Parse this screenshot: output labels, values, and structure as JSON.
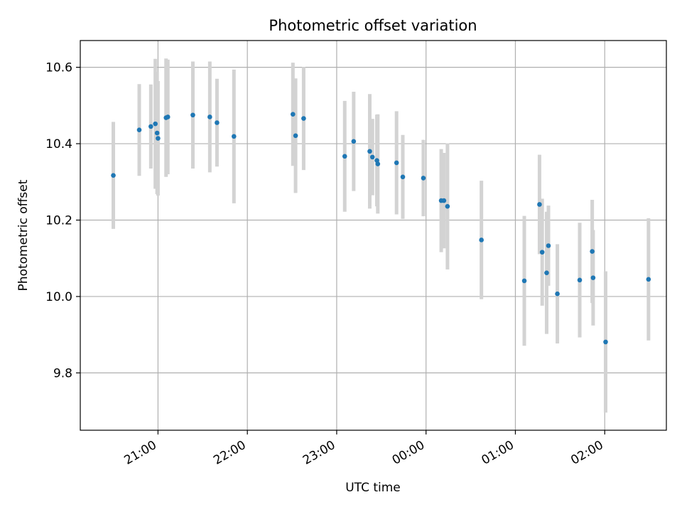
{
  "chart_data": {
    "type": "scatter",
    "title": "Photometric offset variation",
    "xlabel": "UTC time",
    "ylabel": "Photometric offset",
    "x_unit": "hours (continuous from 00:00 of the first night; values >= 24 fall after midnight)",
    "xlim": [
      20.13,
      26.69
    ],
    "ylim": [
      9.65,
      10.67
    ],
    "x_ticks": [
      {
        "value": 21,
        "label": "21:00"
      },
      {
        "value": 22,
        "label": "22:00"
      },
      {
        "value": 23,
        "label": "23:00"
      },
      {
        "value": 24,
        "label": "00:00"
      },
      {
        "value": 25,
        "label": "01:00"
      },
      {
        "value": 26,
        "label": "02:00"
      }
    ],
    "y_ticks": [
      {
        "value": 9.8,
        "label": "9.8"
      },
      {
        "value": 10.0,
        "label": "10.0"
      },
      {
        "value": 10.2,
        "label": "10.2"
      },
      {
        "value": 10.4,
        "label": "10.4"
      },
      {
        "value": 10.6,
        "label": "10.6"
      }
    ],
    "grid": true,
    "colors": {
      "point": "#1f77b4",
      "errorbar": "#d3d3d3",
      "grid": "#b0b0b0",
      "axes": "#000000"
    },
    "points": [
      {
        "x": 20.5,
        "y": 10.317,
        "yerr": 0.14
      },
      {
        "x": 20.79,
        "y": 10.436,
        "yerr": 0.12
      },
      {
        "x": 20.92,
        "y": 10.445,
        "yerr": 0.11
      },
      {
        "x": 20.97,
        "y": 10.452,
        "yerr": 0.17
      },
      {
        "x": 20.99,
        "y": 10.428,
        "yerr": 0.16
      },
      {
        "x": 21.0,
        "y": 10.414,
        "yerr": 0.15
      },
      {
        "x": 21.09,
        "y": 10.468,
        "yerr": 0.155
      },
      {
        "x": 21.11,
        "y": 10.47,
        "yerr": 0.15
      },
      {
        "x": 21.39,
        "y": 10.475,
        "yerr": 0.14
      },
      {
        "x": 21.58,
        "y": 10.47,
        "yerr": 0.145
      },
      {
        "x": 21.66,
        "y": 10.455,
        "yerr": 0.115
      },
      {
        "x": 21.85,
        "y": 10.419,
        "yerr": 0.175
      },
      {
        "x": 22.51,
        "y": 10.477,
        "yerr": 0.135
      },
      {
        "x": 22.54,
        "y": 10.421,
        "yerr": 0.15
      },
      {
        "x": 22.63,
        "y": 10.466,
        "yerr": 0.135
      },
      {
        "x": 23.09,
        "y": 10.367,
        "yerr": 0.145
      },
      {
        "x": 23.19,
        "y": 10.406,
        "yerr": 0.13
      },
      {
        "x": 23.37,
        "y": 10.38,
        "yerr": 0.15
      },
      {
        "x": 23.4,
        "y": 10.365,
        "yerr": 0.1
      },
      {
        "x": 23.45,
        "y": 10.356,
        "yerr": 0.12
      },
      {
        "x": 23.46,
        "y": 10.347,
        "yerr": 0.13
      },
      {
        "x": 23.67,
        "y": 10.35,
        "yerr": 0.135
      },
      {
        "x": 23.74,
        "y": 10.313,
        "yerr": 0.11
      },
      {
        "x": 23.97,
        "y": 10.31,
        "yerr": 0.1
      },
      {
        "x": 24.17,
        "y": 10.251,
        "yerr": 0.135
      },
      {
        "x": 24.2,
        "y": 10.251,
        "yerr": 0.125
      },
      {
        "x": 24.24,
        "y": 10.236,
        "yerr": 0.165
      },
      {
        "x": 24.62,
        "y": 10.148,
        "yerr": 0.155
      },
      {
        "x": 25.1,
        "y": 10.041,
        "yerr": 0.17
      },
      {
        "x": 25.27,
        "y": 10.241,
        "yerr": 0.13
      },
      {
        "x": 25.3,
        "y": 10.116,
        "yerr": 0.14
      },
      {
        "x": 25.35,
        "y": 10.062,
        "yerr": 0.16
      },
      {
        "x": 25.37,
        "y": 10.133,
        "yerr": 0.105
      },
      {
        "x": 25.47,
        "y": 10.007,
        "yerr": 0.13
      },
      {
        "x": 25.72,
        "y": 10.043,
        "yerr": 0.15
      },
      {
        "x": 25.86,
        "y": 10.118,
        "yerr": 0.135
      },
      {
        "x": 25.87,
        "y": 10.049,
        "yerr": 0.125
      },
      {
        "x": 26.01,
        "y": 9.881,
        "yerr": 0.185
      },
      {
        "x": 26.49,
        "y": 10.045,
        "yerr": 0.16
      }
    ]
  }
}
